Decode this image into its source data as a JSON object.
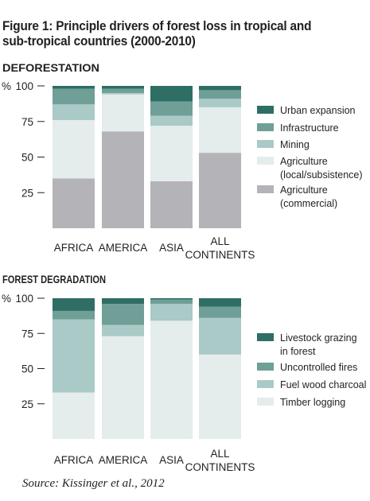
{
  "title": "Figure 1: Principle drivers of forest loss in tropical and sub-tropical countries (2000-2010)",
  "source": "Source: Kissinger et al., 2012",
  "chart_data": [
    {
      "type": "bar",
      "stacked": true,
      "title": "DEFORESTATION",
      "ylabel": "%",
      "ylim": [
        0,
        100
      ],
      "yticks": [
        25,
        50,
        75,
        100
      ],
      "categories": [
        "AFRICA",
        "AMERICA",
        "ASIA",
        "ALL CONTINENTS"
      ],
      "legend_position": "right",
      "series": [
        {
          "name": "Agriculture (commercial)",
          "color": "#b4b3b8",
          "values": [
            35,
            68,
            33,
            53
          ]
        },
        {
          "name": "Agriculture (local/subsistence)",
          "color": "#e4ecec",
          "values": [
            41,
            26,
            39,
            32
          ]
        },
        {
          "name": "Mining",
          "color": "#a9cac6",
          "values": [
            11,
            1,
            7,
            6
          ]
        },
        {
          "name": "Infrastructure",
          "color": "#6f9f97",
          "values": [
            11,
            3,
            10,
            6
          ]
        },
        {
          "name": "Urban expansion",
          "color": "#2e6e64",
          "values": [
            2,
            2,
            11,
            3
          ]
        }
      ]
    },
    {
      "type": "bar",
      "stacked": true,
      "title": "FOREST DEGRADATION",
      "ylabel": "%",
      "ylim": [
        0,
        100
      ],
      "yticks": [
        25,
        50,
        75,
        100
      ],
      "categories": [
        "AFRICA",
        "AMERICA",
        "ASIA",
        "ALL CONTINENTS"
      ],
      "legend_position": "right",
      "series": [
        {
          "name": "Timber logging",
          "color": "#e4ecec",
          "values": [
            33,
            73,
            84,
            60
          ]
        },
        {
          "name": "Fuel wood charcoal",
          "color": "#a9cac6",
          "values": [
            52,
            8,
            12,
            26
          ]
        },
        {
          "name": "Uncontrolled fires",
          "color": "#6f9f97",
          "values": [
            6,
            15,
            3,
            8
          ]
        },
        {
          "name": "Livestock grazing in forest",
          "color": "#2e6e64",
          "values": [
            9,
            4,
            1,
            6
          ]
        }
      ]
    }
  ]
}
